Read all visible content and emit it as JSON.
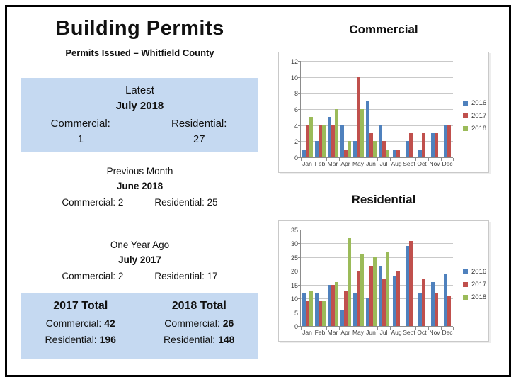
{
  "colors": {
    "box_bg": "#C5D9F1",
    "series_2016": "#4F81BD",
    "series_2017": "#C0504D",
    "series_2018": "#9BBB59",
    "gridline": "#C9C9C9",
    "axis": "#8C8C8C"
  },
  "header": {
    "title": "Building Permits",
    "subtitle": "Permits Issued – Whitfield County"
  },
  "latest": {
    "heading": "Latest",
    "period": "July 2018",
    "left_label": "Commercial:",
    "left_value": "1",
    "right_label": "Residential:",
    "right_value": "27"
  },
  "previous_month": {
    "heading": "Previous Month",
    "period": "June 2018",
    "left": "Commercial: 2",
    "right": "Residential: 25"
  },
  "one_year_ago": {
    "heading": "One Year Ago",
    "period": "July 2017",
    "left": "Commercial: 2",
    "right": "Residential: 17"
  },
  "totals": {
    "left": {
      "heading": "2017 Total",
      "commercial_label": "Commercial: ",
      "commercial_value": "42",
      "residential_label": "Residential: ",
      "residential_value": "196"
    },
    "right": {
      "heading": "2018 Total",
      "commercial_label": "Commercial: ",
      "commercial_value": "26",
      "residential_label": "Residential: ",
      "residential_value": "148"
    }
  },
  "chart_data": [
    {
      "type": "bar",
      "title": "Commercial",
      "categories": [
        "Jan",
        "Feb",
        "Mar",
        "Apr",
        "May",
        "Jun",
        "Jul",
        "Aug",
        "Sept",
        "Oct",
        "Nov",
        "Dec"
      ],
      "series": [
        {
          "name": "2016",
          "color": "#4F81BD",
          "values": [
            1,
            2,
            5,
            4,
            2,
            7,
            4,
            1,
            2,
            1,
            3,
            4
          ]
        },
        {
          "name": "2017",
          "color": "#C0504D",
          "values": [
            4,
            4,
            4,
            1,
            10,
            3,
            2,
            1,
            3,
            3,
            3,
            4
          ]
        },
        {
          "name": "2018",
          "color": "#9BBB59",
          "values": [
            5,
            4,
            6,
            2,
            6,
            2,
            1,
            null,
            null,
            null,
            null,
            null
          ]
        }
      ],
      "xlabel": "",
      "ylabel": "",
      "ylim": [
        0,
        12
      ],
      "ytick": 2,
      "grid": true,
      "legend_position": "right"
    },
    {
      "type": "bar",
      "title": "Residential",
      "categories": [
        "Jan",
        "Feb",
        "Mar",
        "Apr",
        "May",
        "Jun",
        "Jul",
        "Aug",
        "Sept",
        "Oct",
        "Nov",
        "Dec"
      ],
      "series": [
        {
          "name": "2016",
          "color": "#4F81BD",
          "values": [
            12,
            12,
            15,
            6,
            12,
            10,
            22,
            18,
            29,
            12,
            16,
            19
          ]
        },
        {
          "name": "2017",
          "color": "#C0504D",
          "values": [
            9,
            9,
            15,
            13,
            20,
            22,
            17,
            20,
            31,
            17,
            12,
            11
          ]
        },
        {
          "name": "2018",
          "color": "#9BBB59",
          "values": [
            13,
            9,
            16,
            32,
            26,
            25,
            27,
            null,
            null,
            null,
            null,
            null
          ]
        }
      ],
      "xlabel": "",
      "ylabel": "",
      "ylim": [
        0,
        35
      ],
      "ytick": 5,
      "grid": true,
      "legend_position": "right"
    }
  ]
}
